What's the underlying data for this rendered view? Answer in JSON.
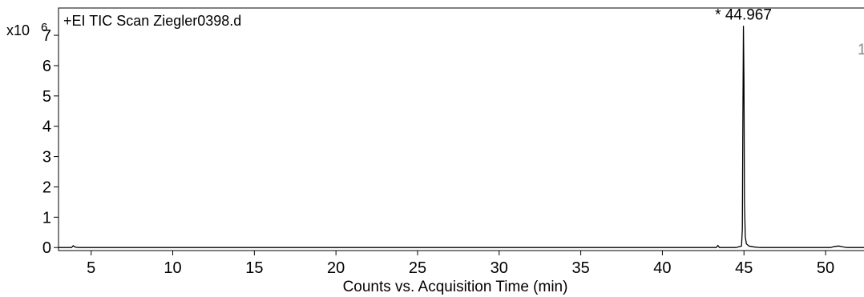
{
  "chart_data": {
    "type": "line",
    "title": "+EI TIC Scan Ziegler0398.d",
    "xlabel": "Counts vs. Acquisition Time (min)",
    "ylabel": "",
    "y_multiplier": "x10",
    "y_exponent": "6",
    "xlim": [
      3.0,
      52.6
    ],
    "ylim": [
      -0.1,
      7.9
    ],
    "x_ticks": [
      5,
      10,
      15,
      20,
      25,
      30,
      35,
      40,
      45,
      50
    ],
    "y_ticks": [
      0,
      1,
      2,
      3,
      4,
      5,
      6,
      7
    ],
    "grid": false,
    "legend": "none",
    "line_color": "#000000",
    "annotations": [
      {
        "x": 44.967,
        "y": 7.3,
        "text": "* 44.967"
      }
    ],
    "clipped_annotation": "1",
    "series": [
      {
        "x": [
          3.0,
          3.8,
          3.9,
          4.0,
          4.2,
          5,
          10,
          15,
          20,
          25,
          30,
          35,
          40,
          43.3,
          43.4,
          43.5,
          43.6,
          44.5,
          44.85,
          44.9,
          44.93,
          44.967,
          45.0,
          45.03,
          45.08,
          45.15,
          45.3,
          45.6,
          46.0,
          50.3,
          50.5,
          50.8,
          51.0,
          51.3,
          52.6
        ],
        "y": [
          0.0,
          0.0,
          0.06,
          0.02,
          0.0,
          0.0,
          0.0,
          0.0,
          0.0,
          0.0,
          0.0,
          0.0,
          0.0,
          0.0,
          0.07,
          0.0,
          0.0,
          0.0,
          0.05,
          0.6,
          4.0,
          7.3,
          5.5,
          1.5,
          0.35,
          0.12,
          0.05,
          0.02,
          0.0,
          0.0,
          0.03,
          0.05,
          0.03,
          0.0,
          0.0
        ]
      }
    ]
  }
}
